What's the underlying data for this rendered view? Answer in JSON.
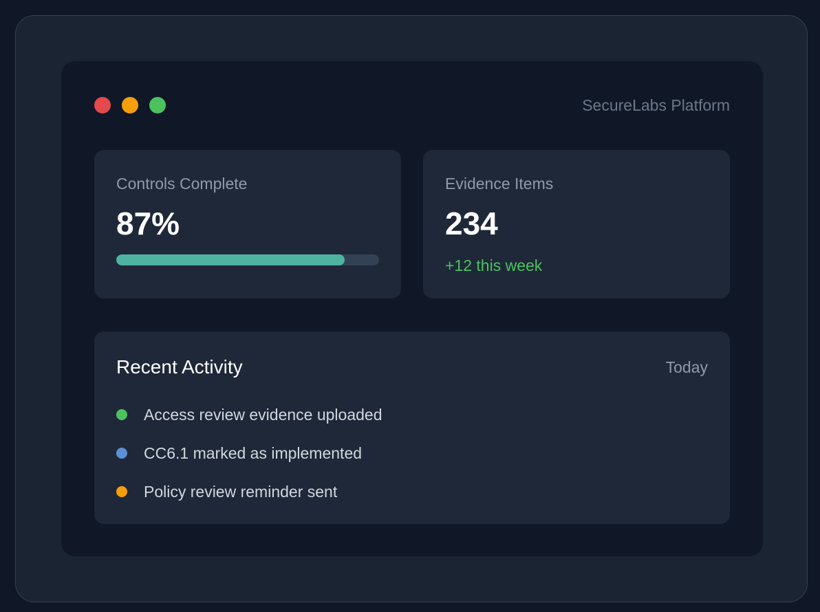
{
  "window": {
    "title": "SecureLabs Platform",
    "controls": [
      "close",
      "minimize",
      "maximize"
    ]
  },
  "stats": {
    "controls_complete": {
      "label": "Controls Complete",
      "value": "87%",
      "progress_fraction": 0.87
    },
    "evidence_items": {
      "label": "Evidence Items",
      "value": "234",
      "delta": "+12 this week"
    }
  },
  "activity": {
    "title": "Recent Activity",
    "filter": "Today",
    "items": [
      {
        "text": "Access review evidence uploaded",
        "status_color": "#4cc25f"
      },
      {
        "text": "CC6.1 marked as implemented",
        "status_color": "#5b8fd6"
      },
      {
        "text": "Policy review reminder sent",
        "status_color": "#f59e0b"
      }
    ]
  },
  "colors": {
    "accent": "#4fb3a1",
    "positive": "#4cc25f",
    "close": "#e5484d",
    "minimize": "#f59e0b",
    "maximize": "#4cc25f"
  }
}
